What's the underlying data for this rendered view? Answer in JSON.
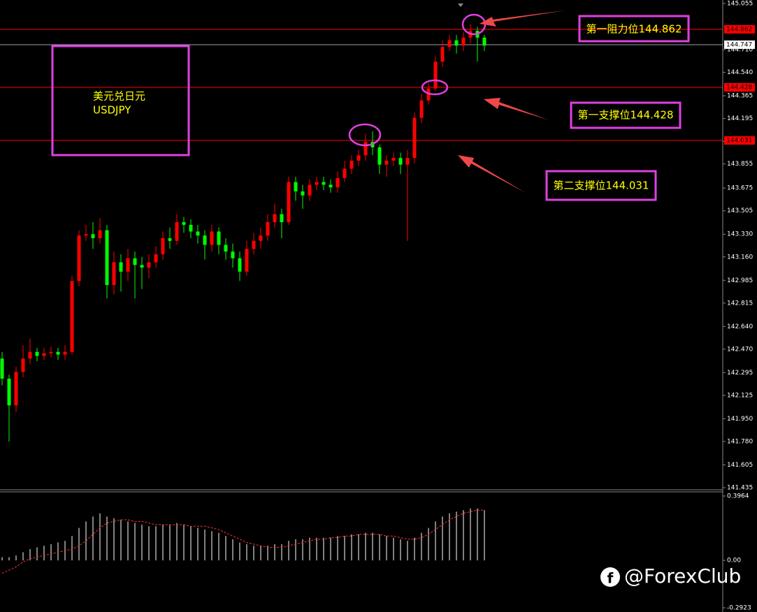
{
  "chart_data": {
    "type": "candlestick",
    "symbol": [
      "美元兑日元",
      "USDJPY"
    ],
    "annotations": [
      "第一阻力位144.862",
      "第一支撑位144.428",
      "第二支撑位144.031"
    ],
    "watermark": "@ForexClub",
    "up_color": "#ff0000",
    "down_color": "#00ff00",
    "ylim": [
      141.435,
      145.055
    ],
    "yticks": [
      145.055,
      {
        "value": 144.71,
        "label": "144.710"
      },
      {
        "value": 144.54,
        "label": "144.540"
      },
      144.365,
      144.195,
      144.025,
      143.855,
      143.675,
      143.505,
      {
        "value": 143.33,
        "label": "143.330"
      },
      {
        "value": 143.16,
        "label": "143.160"
      },
      142.985,
      142.815,
      {
        "value": 142.64,
        "label": "142.640"
      },
      {
        "value": 142.47,
        "label": "142.470"
      },
      142.295,
      142.125,
      {
        "value": 141.95,
        "label": "141.950"
      },
      {
        "value": 141.78,
        "label": "141.780"
      },
      141.605,
      141.435
    ],
    "levels": [
      {
        "value": 144.862,
        "color": "#ff0000"
      },
      {
        "value": 144.747,
        "color": "#9aa4b0"
      },
      {
        "value": 144.428,
        "color": "#ff0000"
      },
      {
        "value": 144.031,
        "color": "#ff0000"
      }
    ],
    "ohlc": [
      [
        142.4,
        142.45,
        142.2,
        142.25
      ],
      [
        142.25,
        142.28,
        141.78,
        142.05
      ],
      [
        142.05,
        142.34,
        142.0,
        142.3
      ],
      [
        142.3,
        142.5,
        142.26,
        142.4
      ],
      [
        142.4,
        142.55,
        142.36,
        142.45
      ],
      [
        142.45,
        142.48,
        142.38,
        142.42
      ],
      [
        142.42,
        142.48,
        142.39,
        142.44
      ],
      [
        142.44,
        142.49,
        142.41,
        142.45
      ],
      [
        142.45,
        142.48,
        142.39,
        142.43
      ],
      [
        142.43,
        142.5,
        142.39,
        142.45
      ],
      [
        142.45,
        143.02,
        142.43,
        142.98
      ],
      [
        142.98,
        143.36,
        142.94,
        143.32
      ],
      [
        143.32,
        143.4,
        143.28,
        143.33
      ],
      [
        143.33,
        143.42,
        143.22,
        143.3
      ],
      [
        143.3,
        143.45,
        143.26,
        143.36
      ],
      [
        143.36,
        143.4,
        142.85,
        142.95
      ],
      [
        142.95,
        143.2,
        142.88,
        143.12
      ],
      [
        143.12,
        143.18,
        142.9,
        143.05
      ],
      [
        143.05,
        143.22,
        142.98,
        143.15
      ],
      [
        143.15,
        143.2,
        142.85,
        143.1
      ],
      [
        143.1,
        143.16,
        142.92,
        143.08
      ],
      [
        143.08,
        143.18,
        143.0,
        143.12
      ],
      [
        143.12,
        143.24,
        143.08,
        143.18
      ],
      [
        143.18,
        143.35,
        143.14,
        143.3
      ],
      [
        143.3,
        143.38,
        143.22,
        143.28
      ],
      [
        143.28,
        143.48,
        143.25,
        143.42
      ],
      [
        143.42,
        143.46,
        143.34,
        143.4
      ],
      [
        143.4,
        143.44,
        143.3,
        143.35
      ],
      [
        143.35,
        143.4,
        143.26,
        143.32
      ],
      [
        143.32,
        143.36,
        143.14,
        143.25
      ],
      [
        143.25,
        143.4,
        143.2,
        143.35
      ],
      [
        143.35,
        143.38,
        143.18,
        143.25
      ],
      [
        143.25,
        143.3,
        143.14,
        143.2
      ],
      [
        143.2,
        143.26,
        143.08,
        143.15
      ],
      [
        143.15,
        143.2,
        142.98,
        143.05
      ],
      [
        143.05,
        143.28,
        143.02,
        143.22
      ],
      [
        143.22,
        143.34,
        143.18,
        143.28
      ],
      [
        143.28,
        143.38,
        143.22,
        143.32
      ],
      [
        143.32,
        143.48,
        143.28,
        143.42
      ],
      [
        143.42,
        143.56,
        143.38,
        143.48
      ],
      [
        143.48,
        143.52,
        143.3,
        143.42
      ],
      [
        143.42,
        143.76,
        143.4,
        143.72
      ],
      [
        143.72,
        143.76,
        143.58,
        143.65
      ],
      [
        143.65,
        143.7,
        143.52,
        143.62
      ],
      [
        143.62,
        143.74,
        143.58,
        143.7
      ],
      [
        143.7,
        143.76,
        143.66,
        143.72
      ],
      [
        143.72,
        143.76,
        143.66,
        143.7
      ],
      [
        143.7,
        143.74,
        143.64,
        143.68
      ],
      [
        143.68,
        143.8,
        143.64,
        143.75
      ],
      [
        143.75,
        143.88,
        143.72,
        143.82
      ],
      [
        143.82,
        143.92,
        143.78,
        143.88
      ],
      [
        143.88,
        143.96,
        143.84,
        143.92
      ],
      [
        143.92,
        144.08,
        143.88,
        144.02
      ],
      [
        144.02,
        144.1,
        143.92,
        143.98
      ],
      [
        143.98,
        144.0,
        143.78,
        143.85
      ],
      [
        143.85,
        143.92,
        143.76,
        143.88
      ],
      [
        143.88,
        143.94,
        143.84,
        143.9
      ],
      [
        143.9,
        143.94,
        143.78,
        143.85
      ],
      [
        143.85,
        143.96,
        143.28,
        143.9
      ],
      [
        143.9,
        144.24,
        143.86,
        144.2
      ],
      [
        144.2,
        144.38,
        144.16,
        144.33
      ],
      [
        144.33,
        144.46,
        144.3,
        144.42
      ],
      [
        144.42,
        144.66,
        144.4,
        144.62
      ],
      [
        144.62,
        144.78,
        144.58,
        144.73
      ],
      [
        144.73,
        144.82,
        144.7,
        144.78
      ],
      [
        144.78,
        144.82,
        144.68,
        144.74
      ],
      [
        144.74,
        144.84,
        144.7,
        144.8
      ],
      [
        144.8,
        144.9,
        144.76,
        144.85
      ],
      [
        144.85,
        144.88,
        144.62,
        144.8
      ],
      [
        144.8,
        144.82,
        144.7,
        144.74
      ]
    ],
    "indicator": {
      "ylim": [
        -0.2923,
        0.3964
      ],
      "yticks": [
        0.3964,
        {
          "value": 0,
          "label": "0.00"
        },
        -0.2923
      ],
      "hist_color": "#ffffff",
      "signal_color": "#ff3030",
      "hist": [
        0.02,
        0.02,
        0.03,
        0.05,
        0.07,
        0.08,
        0.09,
        0.1,
        0.11,
        0.12,
        0.15,
        0.2,
        0.24,
        0.27,
        0.29,
        0.27,
        0.26,
        0.25,
        0.24,
        0.23,
        0.22,
        0.21,
        0.21,
        0.22,
        0.22,
        0.23,
        0.22,
        0.21,
        0.2,
        0.19,
        0.18,
        0.17,
        0.15,
        0.13,
        0.11,
        0.1,
        0.09,
        0.09,
        0.09,
        0.1,
        0.1,
        0.12,
        0.13,
        0.13,
        0.14,
        0.14,
        0.14,
        0.14,
        0.15,
        0.15,
        0.16,
        0.16,
        0.17,
        0.17,
        0.16,
        0.15,
        0.14,
        0.13,
        0.12,
        0.14,
        0.17,
        0.2,
        0.24,
        0.27,
        0.29,
        0.3,
        0.31,
        0.32,
        0.32,
        0.31
      ],
      "signal": [
        -0.08,
        -0.06,
        -0.04,
        -0.01,
        0.01,
        0.02,
        0.03,
        0.04,
        0.05,
        0.06,
        0.07,
        0.09,
        0.12,
        0.16,
        0.2,
        0.23,
        0.24,
        0.25,
        0.25,
        0.24,
        0.24,
        0.23,
        0.22,
        0.22,
        0.22,
        0.22,
        0.22,
        0.21,
        0.21,
        0.21,
        0.2,
        0.19,
        0.17,
        0.15,
        0.13,
        0.11,
        0.1,
        0.09,
        0.08,
        0.08,
        0.08,
        0.09,
        0.1,
        0.11,
        0.12,
        0.13,
        0.13,
        0.14,
        0.14,
        0.15,
        0.15,
        0.16,
        0.16,
        0.16,
        0.16,
        0.15,
        0.15,
        0.14,
        0.13,
        0.13,
        0.14,
        0.16,
        0.19,
        0.22,
        0.25,
        0.27,
        0.29,
        0.3,
        0.31,
        0.31
      ]
    }
  }
}
